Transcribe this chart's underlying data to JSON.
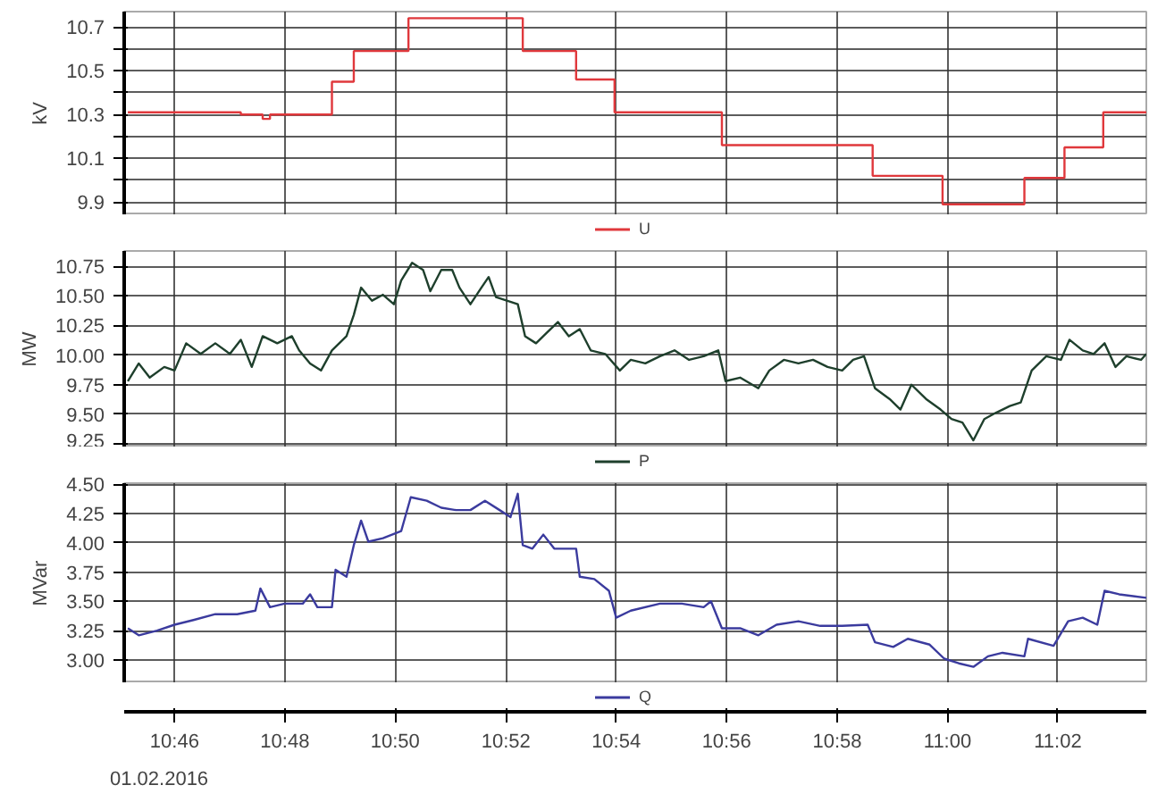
{
  "chart_data": [
    {
      "type": "step",
      "ylabel": "kV",
      "x": [
        10.7526,
        10.7867,
        10.7933,
        10.7955,
        10.8142,
        10.8208,
        10.8373,
        10.8718,
        10.8879,
        10.8995,
        10.9319,
        10.9774,
        10.9985,
        11.0232,
        11.0353,
        11.047,
        11.06
      ],
      "series": [
        {
          "name": "U",
          "color": "#e0383c",
          "values": [
            10.31,
            10.3,
            10.28,
            10.3,
            10.45,
            10.59,
            10.74,
            10.59,
            10.46,
            10.31,
            10.16,
            10.02,
            9.89,
            10.01,
            10.15,
            10.31,
            10.31
          ]
        }
      ],
      "xlim": [
        10.7515,
        11.06
      ],
      "xticks": [
        10.7667,
        10.8,
        10.8333,
        10.8667,
        10.9,
        10.9333,
        10.9667,
        11.0,
        11.0333
      ],
      "ylim": [
        9.84,
        10.77
      ],
      "yticks": [
        9.9,
        {
          "value": 10.0,
          "label": null
        },
        10.1,
        {
          "value": 10.2,
          "label": null
        },
        10.3,
        {
          "value": 10.4,
          "label": null
        },
        10.5,
        {
          "value": 10.6,
          "label": null
        },
        10.7
      ],
      "grid": true,
      "legend": "bottom",
      "tick_labels": "y"
    },
    {
      "type": "line",
      "ylabel": "MW",
      "x": [
        10.7526,
        10.7559,
        10.7592,
        10.7636,
        10.7667,
        10.7702,
        10.7746,
        10.779,
        10.7834,
        10.7867,
        10.79,
        10.7933,
        10.7977,
        10.8021,
        10.8043,
        10.8076,
        10.8109,
        10.8142,
        10.8186,
        10.8208,
        10.823,
        10.8263,
        10.8296,
        10.8329,
        10.8351,
        10.8384,
        10.8417,
        10.8439,
        10.8472,
        10.8505,
        10.8527,
        10.856,
        10.8593,
        10.8615,
        10.8637,
        10.867,
        10.8703,
        10.8725,
        10.8758,
        10.8791,
        10.8824,
        10.8857,
        10.889,
        10.8923,
        10.8967,
        10.9011,
        10.9044,
        10.9088,
        10.9132,
        10.9176,
        10.922,
        10.9264,
        10.9308,
        10.933,
        10.9374,
        10.9429,
        10.9462,
        10.9506,
        10.955,
        10.9594,
        10.9638,
        10.9682,
        10.9715,
        10.9748,
        10.9781,
        10.9825,
        10.9858,
        10.9891,
        10.9935,
        10.9979,
        11.0012,
        11.0045,
        11.0078,
        11.0111,
        11.0144,
        11.0188,
        11.0221,
        11.0254,
        11.0298,
        11.0342,
        11.0368,
        11.0408,
        11.0441,
        11.0474,
        11.0507,
        11.054,
        11.0584,
        11.06
      ],
      "series": [
        {
          "name": "P",
          "color": "#1e3f2c",
          "values": [
            9.78,
            9.93,
            9.81,
            9.9,
            9.87,
            10.1,
            10.01,
            10.1,
            10.01,
            10.13,
            9.9,
            10.16,
            10.1,
            10.16,
            10.04,
            9.93,
            9.87,
            10.04,
            10.16,
            10.34,
            10.57,
            10.46,
            10.51,
            10.43,
            10.63,
            10.78,
            10.72,
            10.54,
            10.72,
            10.72,
            10.57,
            10.43,
            10.57,
            10.66,
            10.49,
            10.46,
            10.43,
            10.16,
            10.1,
            10.19,
            10.28,
            10.16,
            10.22,
            10.04,
            10.01,
            9.87,
            9.96,
            9.93,
            9.99,
            10.04,
            9.96,
            9.99,
            10.04,
            9.78,
            9.81,
            9.72,
            9.87,
            9.96,
            9.93,
            9.96,
            9.9,
            9.87,
            9.96,
            9.99,
            9.72,
            9.63,
            9.54,
            9.75,
            9.63,
            9.54,
            9.46,
            9.43,
            9.28,
            9.46,
            9.51,
            9.57,
            9.6,
            9.87,
            9.99,
            9.96,
            10.13,
            10.04,
            10.01,
            10.1,
            9.9,
            9.99,
            9.96,
            10.01
          ]
        }
      ],
      "xlim": [
        10.7515,
        11.06
      ],
      "xticks": [
        10.7667,
        10.8,
        10.8333,
        10.8667,
        10.9,
        10.9333,
        10.9667,
        11.0,
        11.0333
      ],
      "ylim": [
        9.22,
        10.88
      ],
      "yticks": [
        {
          "value": 9.25,
          "label": "9.25"
        },
        {
          "value": 9.5,
          "label": "9.50"
        },
        {
          "value": 9.75,
          "label": "9.75"
        },
        {
          "value": 10.0,
          "label": "10.00"
        },
        {
          "value": 10.25,
          "label": "10.25"
        },
        {
          "value": 10.5,
          "label": "10.50"
        },
        {
          "value": 10.75,
          "label": "10.75"
        }
      ],
      "grid": true,
      "legend": "bottom",
      "tick_labels": "y"
    },
    {
      "type": "line",
      "ylabel": "MVar",
      "x": [
        10.7526,
        10.7559,
        10.7614,
        10.7667,
        10.7724,
        10.779,
        10.7856,
        10.7911,
        10.7926,
        10.7955,
        10.7999,
        10.8054,
        10.8076,
        10.8098,
        10.8142,
        10.8153,
        10.8186,
        10.8208,
        10.823,
        10.8252,
        10.8296,
        10.8351,
        10.838,
        10.8428,
        10.8472,
        10.8516,
        10.856,
        10.8604,
        10.8648,
        10.8681,
        10.8703,
        10.8718,
        10.8747,
        10.878,
        10.8813,
        10.8879,
        10.889,
        10.8934,
        10.8978,
        10.9,
        10.9044,
        10.9132,
        10.9198,
        10.9264,
        10.9286,
        10.9319,
        10.9374,
        10.9429,
        10.9484,
        10.955,
        10.9616,
        10.9682,
        10.9759,
        10.9781,
        10.9836,
        10.988,
        10.9946,
        10.999,
        11.0034,
        11.0078,
        11.0122,
        11.0166,
        11.0232,
        11.0243,
        11.032,
        11.0364,
        11.0408,
        11.0452,
        11.0474,
        11.0518,
        11.06
      ],
      "series": [
        {
          "name": "Q",
          "color": "#3b3b9e",
          "values": [
            3.27,
            3.21,
            3.25,
            3.3,
            3.34,
            3.39,
            3.39,
            3.42,
            3.61,
            3.45,
            3.48,
            3.48,
            3.56,
            3.45,
            3.45,
            3.77,
            3.71,
            3.98,
            4.19,
            4.01,
            4.04,
            4.1,
            4.39,
            4.36,
            4.3,
            4.28,
            4.28,
            4.36,
            4.28,
            4.22,
            4.42,
            3.98,
            3.95,
            4.07,
            3.95,
            3.95,
            3.71,
            3.69,
            3.59,
            3.36,
            3.42,
            3.48,
            3.48,
            3.45,
            3.5,
            3.27,
            3.27,
            3.21,
            3.3,
            3.33,
            3.29,
            3.29,
            3.3,
            3.15,
            3.11,
            3.18,
            3.13,
            3.01,
            2.97,
            2.94,
            3.03,
            3.06,
            3.03,
            3.18,
            3.12,
            3.33,
            3.36,
            3.3,
            3.59,
            3.56,
            3.53
          ]
        }
      ],
      "xlim": [
        10.7515,
        11.06
      ],
      "xticks": [
        {
          "value": 10.7667,
          "label": "10:46"
        },
        {
          "value": 10.8,
          "label": "10:48"
        },
        {
          "value": 10.8333,
          "label": "10:50"
        },
        {
          "value": 10.8667,
          "label": "10:52"
        },
        {
          "value": 10.9,
          "label": "10:54"
        },
        {
          "value": 10.9333,
          "label": "10:56"
        },
        {
          "value": 10.9667,
          "label": "10:58"
        },
        {
          "value": 11.0,
          "label": "11:00"
        },
        {
          "value": 11.0333,
          "label": "11:02"
        }
      ],
      "ylim": [
        2.8,
        4.51
      ],
      "yticks": [
        {
          "value": 3.0,
          "label": "3.00"
        },
        {
          "value": 3.25,
          "label": "3.25"
        },
        {
          "value": 3.5,
          "label": "3.50"
        },
        {
          "value": 3.75,
          "label": "3.75"
        },
        {
          "value": 4.0,
          "label": "4.00"
        },
        {
          "value": 4.25,
          "label": "4.25"
        },
        {
          "value": 4.5,
          "label": "4.50"
        }
      ],
      "grid": true,
      "legend": "bottom",
      "annotations": [
        "01.02.2016"
      ]
    }
  ]
}
